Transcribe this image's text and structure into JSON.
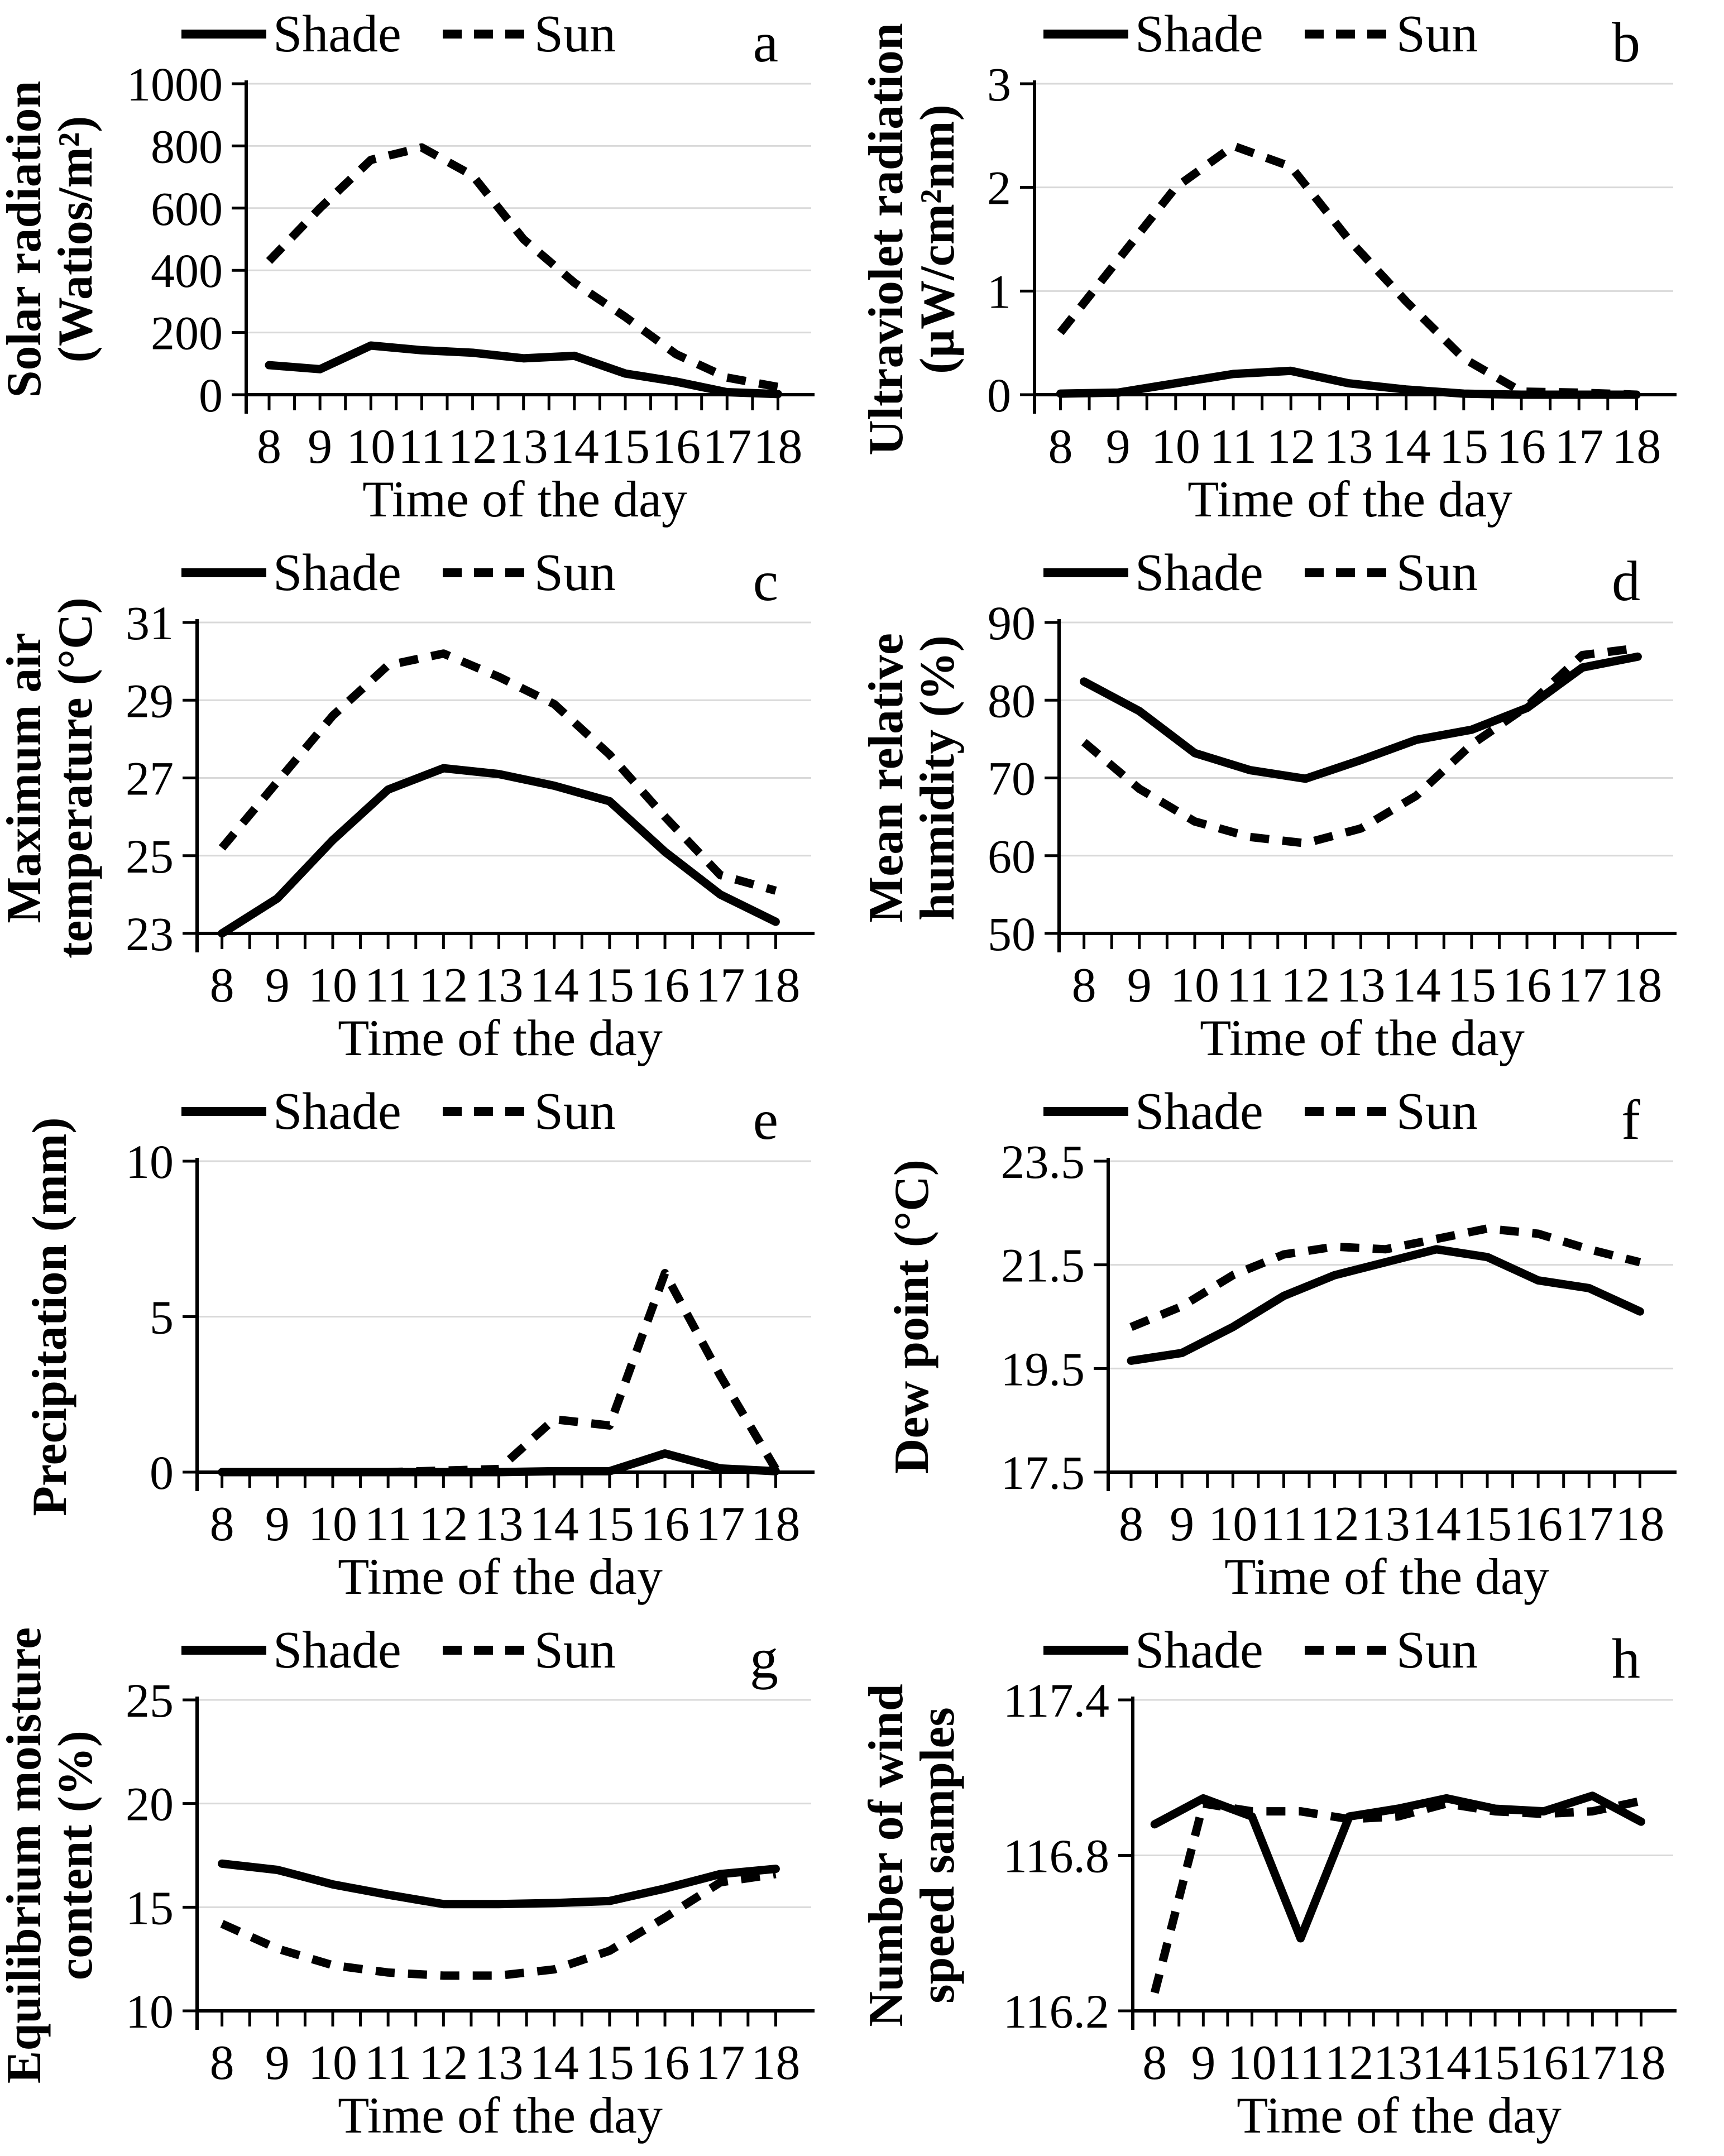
{
  "page": {
    "background": "#ffffff",
    "series_color": "#000000",
    "grid_color": "#d9d9d9"
  },
  "legend": {
    "shade_label": "Shade",
    "sun_label": "Sun"
  },
  "x_axis": {
    "label": "Time of the day",
    "ticks": [
      8,
      9,
      10,
      11,
      12,
      13,
      14,
      15,
      16,
      17,
      18
    ]
  },
  "chart_data": [
    {
      "type": "line",
      "panel_letter": "a",
      "ylabel_lines": [
        "Solar radiation",
        "(Watios/m²)"
      ],
      "xlabel": "Time of the day",
      "x": [
        8,
        9,
        10,
        11,
        12,
        13,
        14,
        15,
        16,
        17,
        18
      ],
      "ylim": [
        0,
        1000
      ],
      "yticks": [
        0,
        200,
        400,
        600,
        800,
        1000
      ],
      "ytick_labels": [
        "0",
        "200",
        "400",
        "600",
        "800",
        "1000"
      ],
      "grid": true,
      "legend_position": "top",
      "series": [
        {
          "name": "Shade",
          "style": "solid",
          "values": [
            95,
            82,
            158,
            143,
            135,
            117,
            125,
            68,
            42,
            8,
            2
          ]
        },
        {
          "name": "Sun",
          "style": "dashed",
          "values": [
            430,
            600,
            755,
            795,
            705,
            500,
            360,
            250,
            130,
            55,
            25
          ]
        }
      ]
    },
    {
      "type": "line",
      "panel_letter": "b",
      "ylabel_lines": [
        "Ultraviolet radiation",
        "(µW/cm²nm)"
      ],
      "xlabel": "Time of the day",
      "x": [
        8,
        9,
        10,
        11,
        12,
        13,
        14,
        15,
        16,
        17,
        18
      ],
      "ylim": [
        0,
        3
      ],
      "yticks": [
        0,
        1,
        2,
        3
      ],
      "ytick_labels": [
        "0",
        "1",
        "2",
        "3"
      ],
      "grid": true,
      "legend_position": "top",
      "series": [
        {
          "name": "Shade",
          "style": "solid",
          "values": [
            0.01,
            0.02,
            0.11,
            0.2,
            0.23,
            0.11,
            0.05,
            0.01,
            0,
            0,
            0
          ]
        },
        {
          "name": "Sun",
          "style": "dashed",
          "values": [
            0.6,
            1.3,
            2.0,
            2.4,
            2.2,
            1.5,
            0.9,
            0.35,
            0.03,
            0.02,
            0
          ]
        }
      ]
    },
    {
      "type": "line",
      "panel_letter": "c",
      "ylabel_lines": [
        "Maximum air",
        "temperature (°C)"
      ],
      "xlabel": "Time of the day",
      "x": [
        8,
        9,
        10,
        11,
        12,
        13,
        14,
        15,
        16,
        17,
        18
      ],
      "ylim": [
        23,
        31
      ],
      "yticks": [
        23,
        25,
        27,
        29,
        31
      ],
      "ytick_labels": [
        "23",
        "25",
        "27",
        "29",
        "31"
      ],
      "grid": true,
      "legend_position": "top",
      "series": [
        {
          "name": "Shade",
          "style": "solid",
          "values": [
            23.0,
            23.9,
            25.4,
            26.7,
            27.25,
            27.1,
            26.8,
            26.4,
            25.1,
            24.0,
            23.3
          ]
        },
        {
          "name": "Sun",
          "style": "dashed",
          "values": [
            25.2,
            26.9,
            28.6,
            29.9,
            30.2,
            29.6,
            28.9,
            27.6,
            26.0,
            24.5,
            24.1
          ]
        }
      ]
    },
    {
      "type": "line",
      "panel_letter": "d",
      "ylabel_lines": [
        "Mean relative",
        "humidity (%)"
      ],
      "xlabel": "Time of the day",
      "x": [
        8,
        9,
        10,
        11,
        12,
        13,
        14,
        15,
        16,
        17,
        18
      ],
      "ylim": [
        50,
        90
      ],
      "yticks": [
        50,
        60,
        70,
        80,
        90
      ],
      "ytick_labels": [
        "50",
        "60",
        "70",
        "80",
        "90"
      ],
      "grid": true,
      "legend_position": "top",
      "series": [
        {
          "name": "Shade",
          "style": "solid",
          "values": [
            82.4,
            78.6,
            73.2,
            71.0,
            69.9,
            72.3,
            74.9,
            76.2,
            79.0,
            84.2,
            85.6
          ]
        },
        {
          "name": "Sun",
          "style": "dashed",
          "values": [
            74.6,
            68.6,
            64.4,
            62.4,
            61.6,
            63.5,
            67.7,
            74.3,
            79.2,
            85.8,
            86.7
          ]
        }
      ]
    },
    {
      "type": "line",
      "panel_letter": "e",
      "ylabel_lines": [
        "Precipitation (mm)"
      ],
      "xlabel": "Time of the day",
      "x": [
        8,
        9,
        10,
        11,
        12,
        13,
        14,
        15,
        16,
        17,
        18
      ],
      "ylim": [
        0,
        10
      ],
      "yticks": [
        0,
        5,
        10
      ],
      "ytick_labels": [
        "0",
        "5",
        "10"
      ],
      "grid": true,
      "legend_position": "top",
      "series": [
        {
          "name": "Shade",
          "style": "solid",
          "values": [
            0,
            0,
            0,
            0,
            0,
            0,
            0.03,
            0.03,
            0.6,
            0.12,
            0.03
          ]
        },
        {
          "name": "Sun",
          "style": "dashed",
          "values": [
            0,
            0,
            0,
            0,
            0.05,
            0.1,
            1.7,
            1.5,
            6.4,
            3.1,
            0.1
          ]
        }
      ]
    },
    {
      "type": "line",
      "panel_letter": "f",
      "ylabel_lines": [
        "Dew point (°C)"
      ],
      "xlabel": "Time of the day",
      "x": [
        8,
        9,
        10,
        11,
        12,
        13,
        14,
        15,
        16,
        17,
        18
      ],
      "ylim": [
        17.5,
        23.5
      ],
      "yticks": [
        17.5,
        19.5,
        21.5,
        23.5
      ],
      "ytick_labels": [
        "17.5",
        "19.5",
        "21.5",
        "23.5"
      ],
      "grid": true,
      "legend_position": "top",
      "series": [
        {
          "name": "Shade",
          "style": "solid",
          "values": [
            19.65,
            19.8,
            20.3,
            20.9,
            21.3,
            21.55,
            21.8,
            21.65,
            21.2,
            21.05,
            20.6
          ]
        },
        {
          "name": "Sun",
          "style": "dashed",
          "values": [
            20.3,
            20.7,
            21.3,
            21.7,
            21.85,
            21.8,
            22.0,
            22.2,
            22.1,
            21.8,
            21.55
          ]
        }
      ]
    },
    {
      "type": "line",
      "panel_letter": "g",
      "ylabel_lines": [
        "Equilibrium moisture",
        "content (%)"
      ],
      "xlabel": "Time of the day",
      "x": [
        8,
        9,
        10,
        11,
        12,
        13,
        14,
        15,
        16,
        17,
        18
      ],
      "ylim": [
        10,
        25
      ],
      "yticks": [
        10,
        15,
        20,
        25
      ],
      "ytick_labels": [
        "10",
        "15",
        "20",
        "25"
      ],
      "grid": true,
      "legend_position": "top",
      "series": [
        {
          "name": "Shade",
          "style": "solid",
          "values": [
            17.1,
            16.8,
            16.1,
            15.6,
            15.15,
            15.15,
            15.2,
            15.3,
            15.9,
            16.6,
            16.85
          ]
        },
        {
          "name": "Sun",
          "style": "dashed",
          "values": [
            14.2,
            13.0,
            12.2,
            11.85,
            11.7,
            11.7,
            12.0,
            12.9,
            14.5,
            16.2,
            16.6
          ]
        }
      ]
    },
    {
      "type": "line",
      "panel_letter": "h",
      "ylabel_lines": [
        "Number of wind",
        "speed samples"
      ],
      "xlabel": "Time of the day",
      "x": [
        8,
        9,
        10,
        11,
        12,
        13,
        14,
        15,
        16,
        17,
        18
      ],
      "ylim": [
        116.2,
        117.4
      ],
      "yticks": [
        116.2,
        116.8,
        117.4
      ],
      "ytick_labels": [
        "116.2",
        "116.8",
        "117.4"
      ],
      "grid": true,
      "legend_position": "top",
      "series": [
        {
          "name": "Shade",
          "style": "solid",
          "values": [
            116.92,
            117.02,
            116.95,
            116.48,
            116.95,
            116.98,
            117.02,
            116.98,
            116.97,
            117.03,
            116.93
          ]
        },
        {
          "name": "Sun",
          "style": "dashed",
          "values": [
            116.27,
            117.0,
            116.97,
            116.97,
            116.94,
            116.95,
            117.0,
            116.97,
            116.96,
            116.97,
            117.01
          ]
        }
      ]
    }
  ]
}
